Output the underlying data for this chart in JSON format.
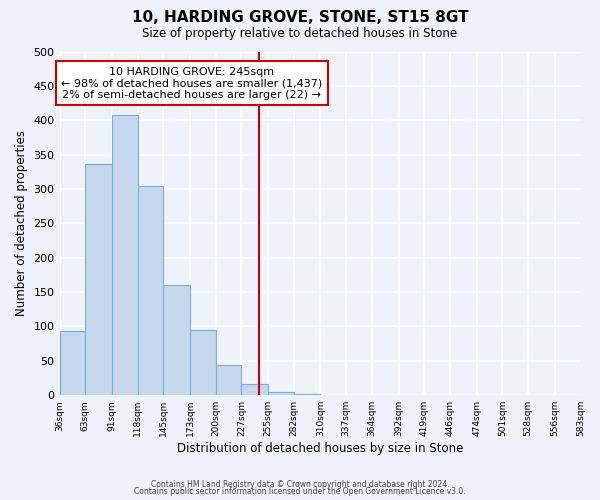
{
  "title": "10, HARDING GROVE, STONE, ST15 8GT",
  "subtitle": "Size of property relative to detached houses in Stone",
  "xlabel": "Distribution of detached houses by size in Stone",
  "ylabel": "Number of detached properties",
  "bar_color": "#c5d8ee",
  "bar_edge_color": "#7bafd4",
  "background_color": "#eef2fb",
  "grid_color": "#ffffff",
  "bin_edges": [
    36,
    63,
    91,
    118,
    145,
    173,
    200,
    227,
    255,
    282,
    310,
    337,
    364,
    392,
    419,
    446,
    474,
    501,
    528,
    556,
    583
  ],
  "bar_heights": [
    93,
    336,
    407,
    304,
    161,
    95,
    44,
    16,
    4,
    2,
    0,
    1,
    0,
    0,
    0,
    0,
    0,
    1,
    0,
    1
  ],
  "tick_labels": [
    "36sqm",
    "63sqm",
    "91sqm",
    "118sqm",
    "145sqm",
    "173sqm",
    "200sqm",
    "227sqm",
    "255sqm",
    "282sqm",
    "310sqm",
    "337sqm",
    "364sqm",
    "392sqm",
    "419sqm",
    "446sqm",
    "474sqm",
    "501sqm",
    "528sqm",
    "556sqm",
    "583sqm"
  ],
  "vline_x": 245,
  "vline_color": "#cc0000",
  "annotation_title": "10 HARDING GROVE: 245sqm",
  "annotation_line1": "← 98% of detached houses are smaller (1,437)",
  "annotation_line2": "2% of semi-detached houses are larger (22) →",
  "annotation_box_color": "#ffffff",
  "annotation_box_edge": "#cc0000",
  "ylim": [
    0,
    500
  ],
  "yticks": [
    0,
    50,
    100,
    150,
    200,
    250,
    300,
    350,
    400,
    450,
    500
  ],
  "footer1": "Contains HM Land Registry data © Crown copyright and database right 2024.",
  "footer2": "Contains public sector information licensed under the Open Government Licence v3.0."
}
